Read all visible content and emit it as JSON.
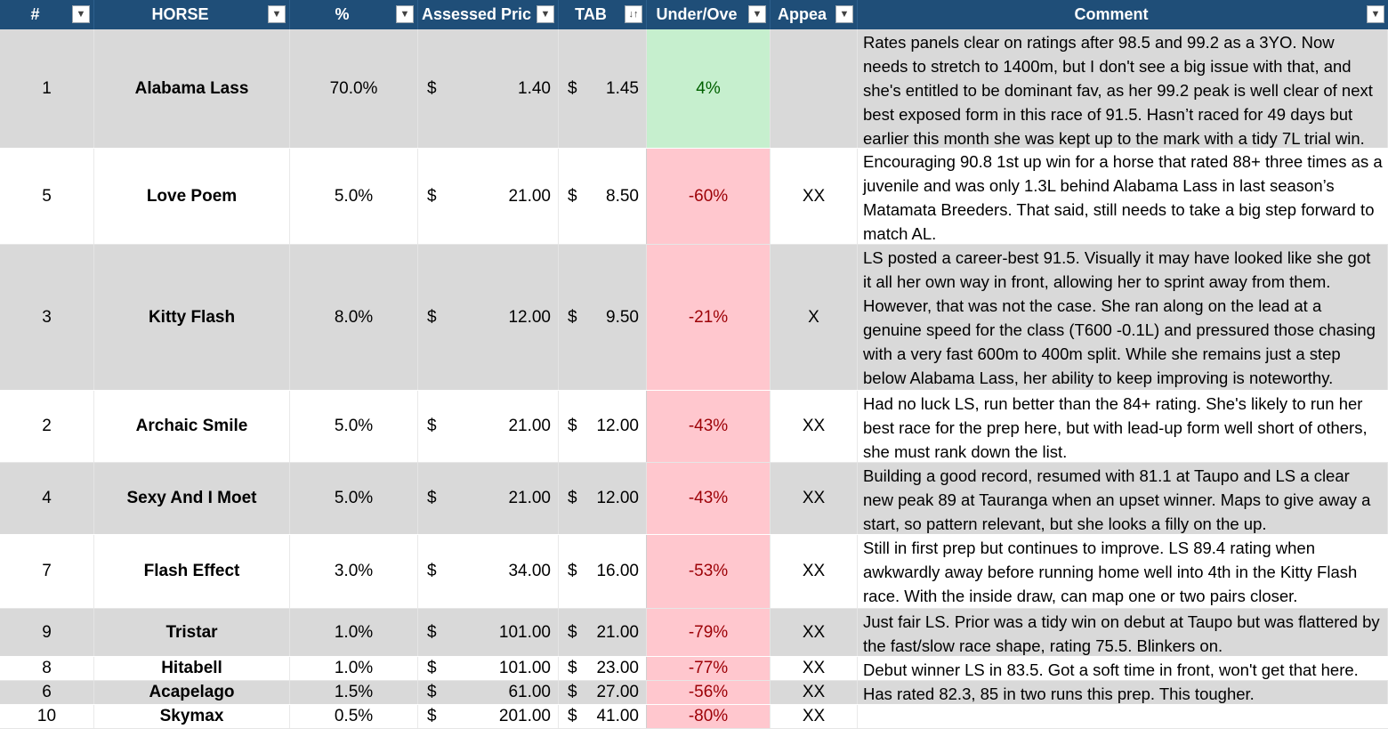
{
  "headers": {
    "num": "#",
    "horse": "HORSE",
    "pct": "%",
    "assessed": "Assessed Pric",
    "tab": "TAB",
    "under_over": "Under/Ove",
    "appeal": "Appea",
    "comment": "Comment"
  },
  "icons": {
    "filter": "filter-dropdown-icon",
    "sort": "sort-ascending-icon"
  },
  "colors": {
    "header_bg": "#1f4e78",
    "row_shade": "#d9d9d9",
    "positive_bg": "#c6efce",
    "positive_text": "#006100",
    "negative_bg": "#ffc7ce",
    "negative_text": "#9c0006"
  },
  "currency": "$",
  "rows": [
    {
      "num": "1",
      "horse": "Alabama Lass",
      "pct": "70.0%",
      "assessed": "1.40",
      "tab": "1.45",
      "under_over": "4%",
      "appeal": "",
      "comment": "Rates panels clear on ratings after 98.5 and 99.2 as a 3YO. Now needs to stretch to 1400m, but I don't see a big issue with that, and she's entitled to be dominant fav, as her 99.2 peak is well clear of next best exposed form in this race of 91.5. Hasn’t raced for 49 days but earlier this month she was kept up to the mark with a tidy 7L trial win."
    },
    {
      "num": "5",
      "horse": "Love Poem",
      "pct": "5.0%",
      "assessed": "21.00",
      "tab": "8.50",
      "under_over": "-60%",
      "appeal": "XX",
      "comment": "Encouraging 90.8 1st up win for a horse that rated 88+ three times as a juvenile and was only 1.3L behind Alabama Lass in last season’s Matamata Breeders. That said, still needs to take a big step forward to match AL."
    },
    {
      "num": "3",
      "horse": "Kitty Flash",
      "pct": "8.0%",
      "assessed": "12.00",
      "tab": "9.50",
      "under_over": "-21%",
      "appeal": "X",
      "comment": "LS posted a career-best 91.5. Visually it may have looked like she got it all her own way in front, allowing her to sprint away from them. However, that was not the case. She ran along on the lead at a genuine speed for the class (T600 -0.1L) and pressured those chasing with a very fast 600m to 400m split. While she remains just a step below Alabama Lass, her ability to keep improving is noteworthy."
    },
    {
      "num": "2",
      "horse": "Archaic Smile",
      "pct": "5.0%",
      "assessed": "21.00",
      "tab": "12.00",
      "under_over": "-43%",
      "appeal": "XX",
      "comment": "Had no luck LS, run better than the 84+ rating. She's likely to run her best race for the prep here, but with lead-up form well short of others, she must rank down the list."
    },
    {
      "num": "4",
      "horse": "Sexy And I Moet",
      "pct": "5.0%",
      "assessed": "21.00",
      "tab": "12.00",
      "under_over": "-43%",
      "appeal": "XX",
      "comment": "Building a good record, resumed with 81.1 at Taupo and LS a clear new peak 89 at Tauranga when an upset winner. Maps to give away a start, so pattern relevant, but she looks a filly on the up."
    },
    {
      "num": "7",
      "horse": "Flash Effect",
      "pct": "3.0%",
      "assessed": "34.00",
      "tab": "16.00",
      "under_over": "-53%",
      "appeal": "XX",
      "comment": "Still in first prep but continues to improve. LS 89.4 rating when awkwardly away before running home well into 4th in the Kitty Flash race. With the inside draw, can map one or two pairs closer."
    },
    {
      "num": "9",
      "horse": "Tristar",
      "pct": "1.0%",
      "assessed": "101.00",
      "tab": "21.00",
      "under_over": "-79%",
      "appeal": "XX",
      "comment": "Just fair LS. Prior was a tidy win on debut at Taupo but was flattered by the fast/slow race shape, rating 75.5. Blinkers on."
    },
    {
      "num": "8",
      "horse": "Hitabell",
      "pct": "1.0%",
      "assessed": "101.00",
      "tab": "23.00",
      "under_over": "-77%",
      "appeal": "XX",
      "comment": "Debut winner LS in 83.5. Got a soft time in front, won't get that here."
    },
    {
      "num": "6",
      "horse": "Acapelago",
      "pct": "1.5%",
      "assessed": "61.00",
      "tab": "27.00",
      "under_over": "-56%",
      "appeal": "XX",
      "comment": "Has rated 82.3, 85 in two runs this prep. This tougher."
    },
    {
      "num": "10",
      "horse": "Skymax",
      "pct": "0.5%",
      "assessed": "201.00",
      "tab": "41.00",
      "under_over": "-80%",
      "appeal": "XX",
      "comment": ""
    }
  ]
}
